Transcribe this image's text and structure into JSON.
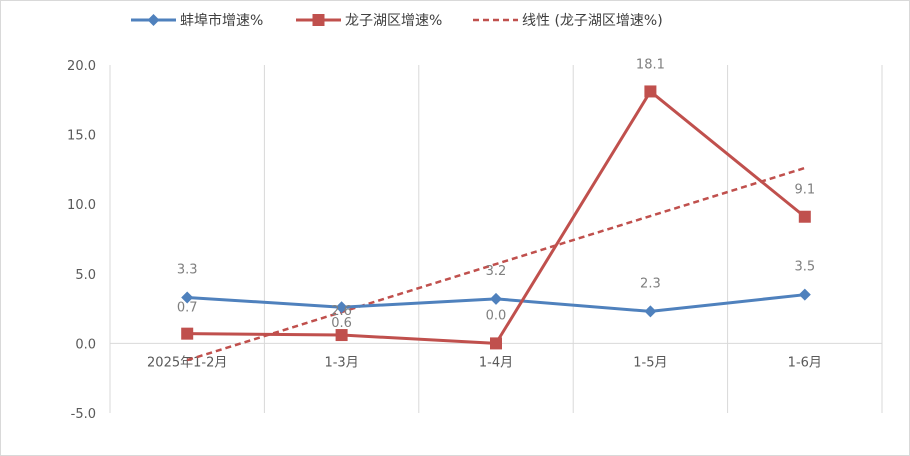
{
  "chart_data": {
    "type": "line",
    "categories": [
      "2025年1-2月",
      "1-3月",
      "1-4月",
      "1-5月",
      "1-6月"
    ],
    "ylim": [
      -5.0,
      20.0
    ],
    "yticks": [
      "20.0",
      "15.0",
      "10.0",
      "5.0",
      "0.0",
      "-5.0"
    ],
    "ytick_values": [
      20,
      15,
      10,
      5,
      0,
      -5
    ],
    "grid": "vertical",
    "legend_position": "top",
    "series": [
      {
        "name": "蚌埠市增速%",
        "values": [
          3.3,
          2.6,
          3.2,
          2.3,
          3.5
        ],
        "labels": [
          "3.3",
          "2.6",
          "3.2",
          "2.3",
          "3.5"
        ],
        "color": "#4f81bd",
        "marker": "diamond"
      },
      {
        "name": "龙子湖区增速%",
        "values": [
          0.7,
          0.6,
          0.0,
          18.1,
          9.1
        ],
        "labels": [
          "0.7",
          "0.6",
          "0.0",
          "18.1",
          "9.1"
        ],
        "color": "#c0504d",
        "marker": "square"
      }
    ],
    "trendline": {
      "name": "线性 (龙子湖区增速%)",
      "start": -1.2,
      "end": 12.6,
      "color": "#c0504d",
      "style": "dashed"
    }
  }
}
